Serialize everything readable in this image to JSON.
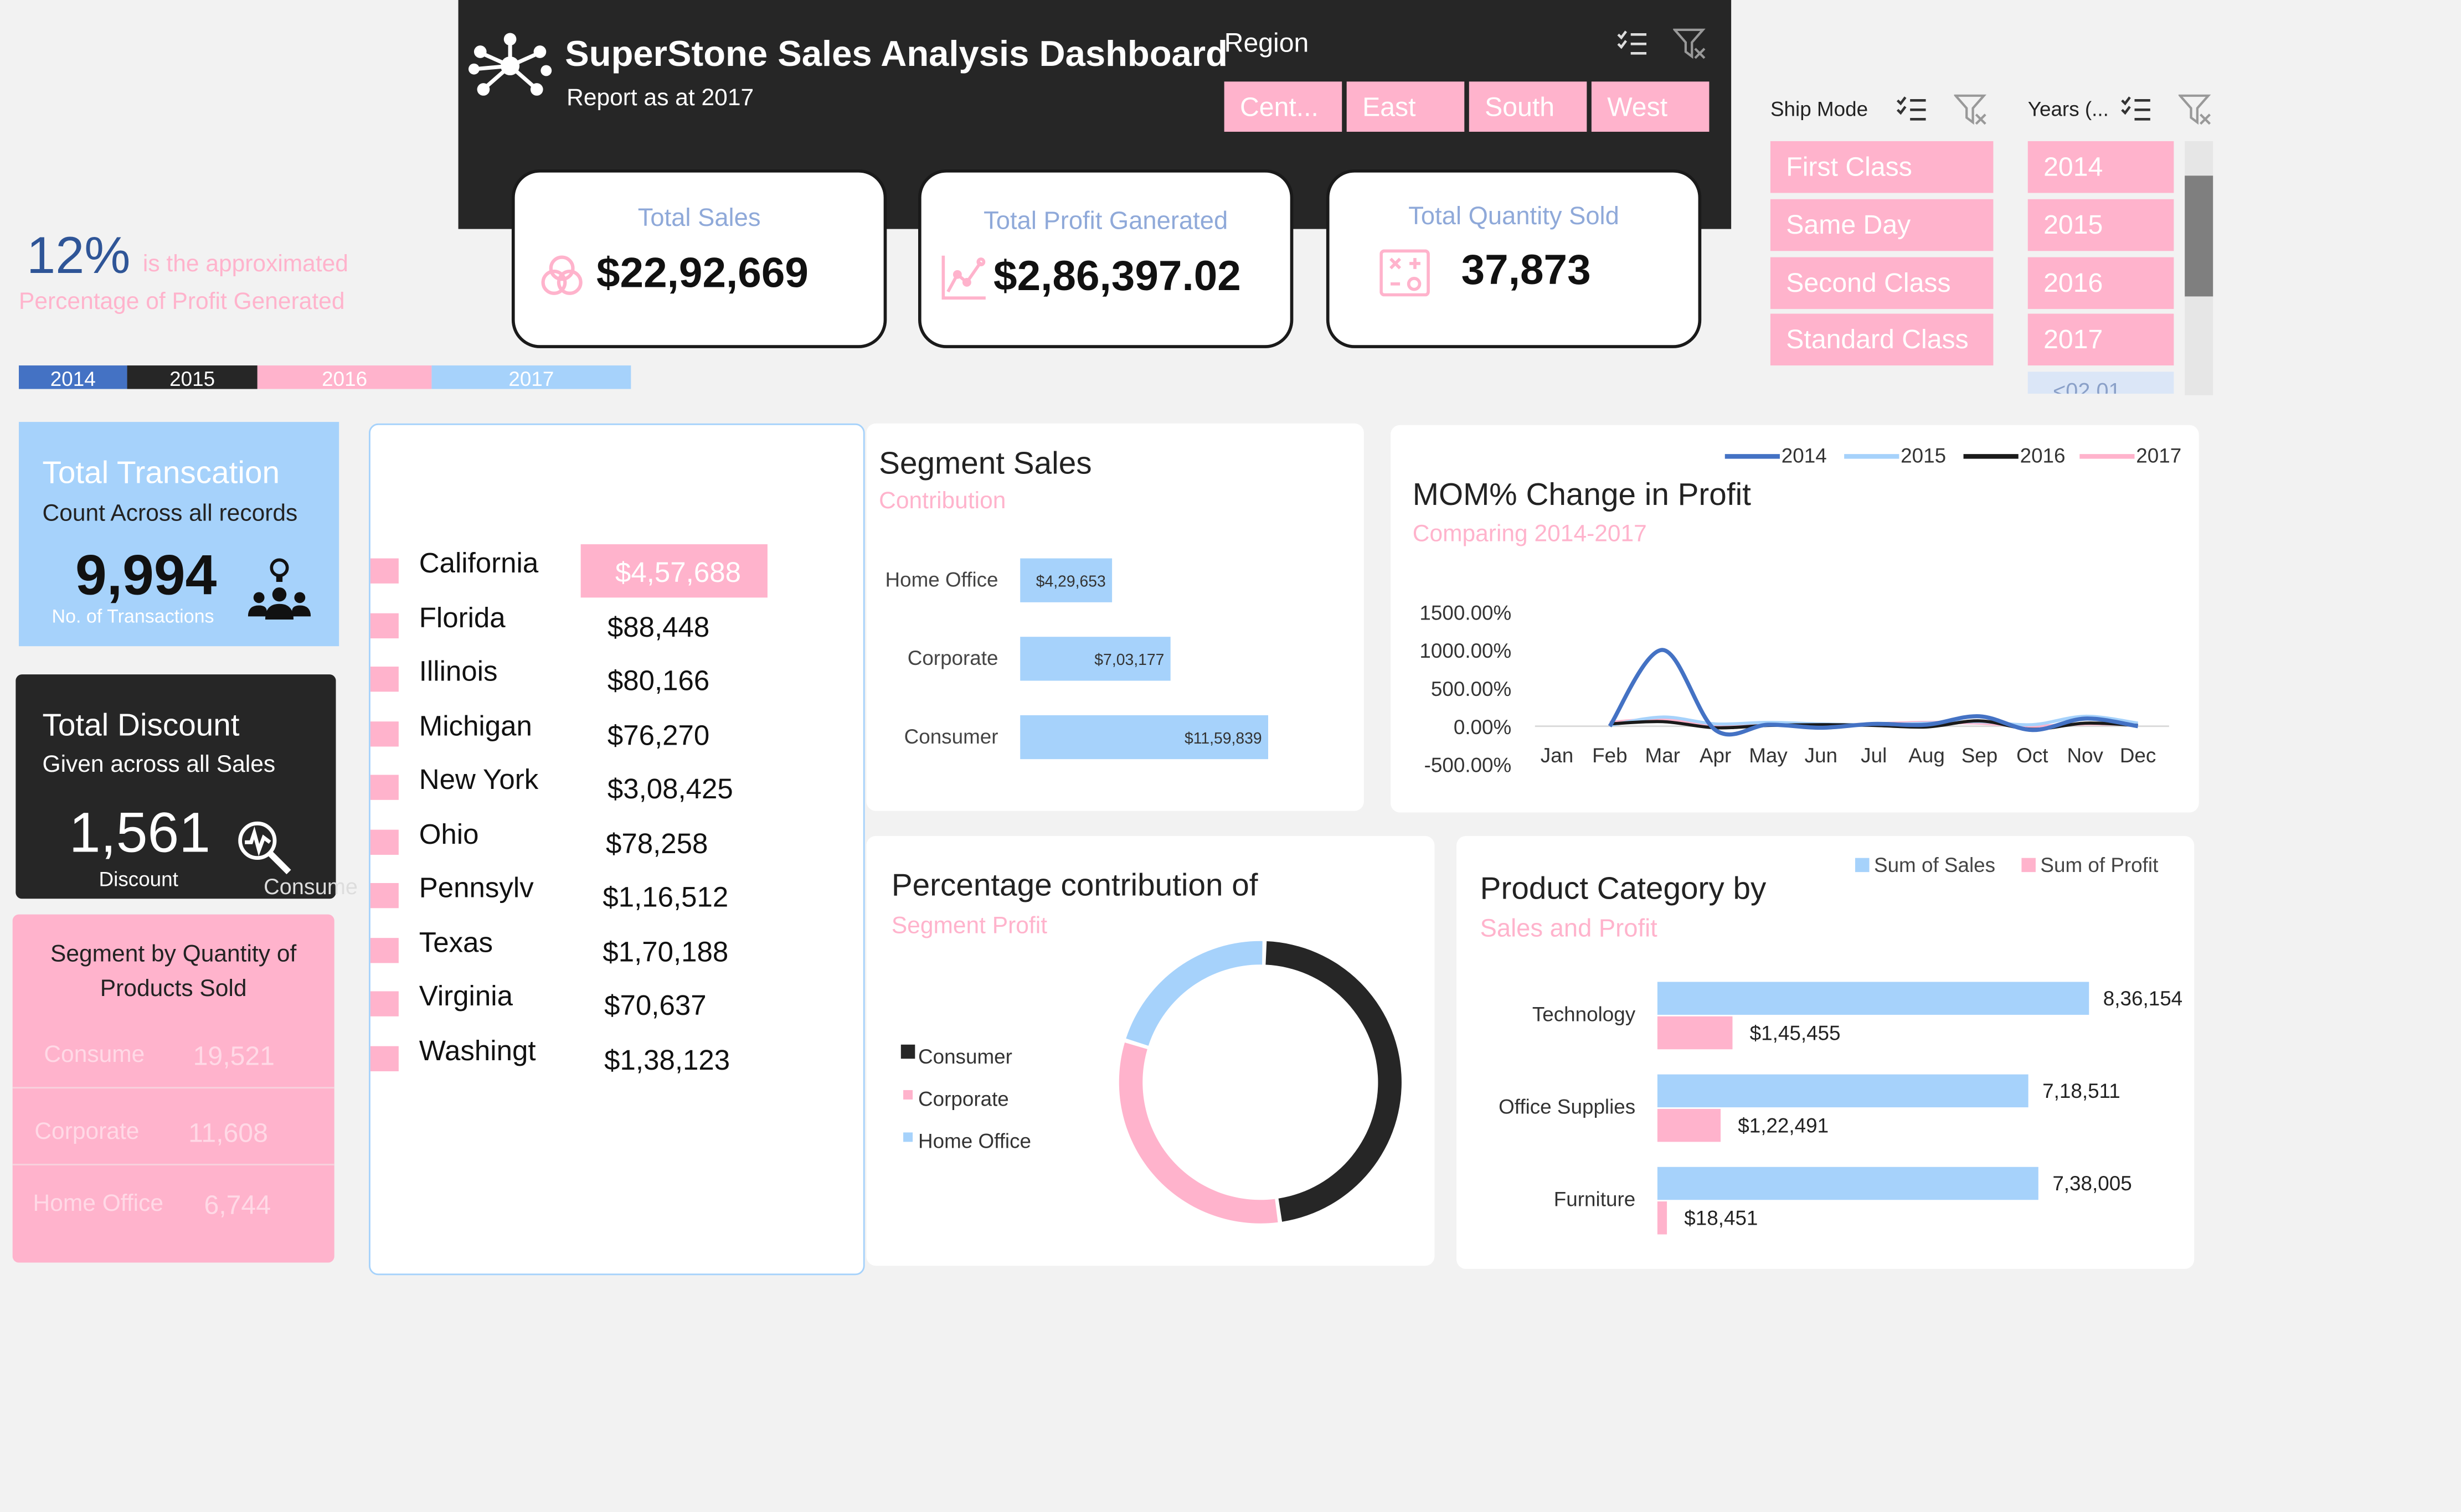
{
  "header": {
    "title": "SuperStone Sales Analysis Dashboard",
    "subtitle": "Report as at 2017",
    "logo_icon": "network-hub-icon"
  },
  "region_slicer": {
    "title": "Region",
    "options": [
      "Cent...",
      "East",
      "South",
      "West"
    ],
    "icons": [
      "multi-select-icon",
      "clear-filter-icon"
    ]
  },
  "ship_mode_slicer": {
    "title": "Ship Mode",
    "options": [
      "First Class",
      "Same Day",
      "Second Class",
      "Standard Class"
    ]
  },
  "years_slicer": {
    "title": "Years (...",
    "options": [
      "2014",
      "2015",
      "2016",
      "2017"
    ],
    "partial_option": "<02 01"
  },
  "kpis": {
    "sales": {
      "title": "Total Sales",
      "value": "$22,92,669",
      "icon": "venn-circles-icon"
    },
    "profit": {
      "title": "Total Profit Ganerated",
      "value": "$2,86,397.02",
      "icon": "line-chart-icon"
    },
    "quantity": {
      "title": "Total Quantity Sold",
      "value": "37,873",
      "icon": "abacus-icon"
    }
  },
  "profit_pct": {
    "value": "12%",
    "text1": "is the approximated",
    "text2": "Percentage of Profit Generated"
  },
  "year_legend": [
    {
      "label": "2014",
      "color": "#4472c4"
    },
    {
      "label": "2015",
      "color": "#262626"
    },
    {
      "label": "2016",
      "color": "#ffb3cc"
    },
    {
      "label": "2017",
      "color": "#a6d2fb"
    }
  ],
  "transactions": {
    "title": "Total Transcation",
    "subtitle": "Count Across all records",
    "value": "9,994",
    "caption": "No. of Transactions",
    "icon": "people-idea-icon"
  },
  "discount": {
    "title": "Total Discount",
    "subtitle": "Given across all Sales",
    "value": "1,561",
    "caption": "Discount",
    "overflow_label": "Consume",
    "icon": "search-analytics-icon"
  },
  "segment_quantity": {
    "title_line1": "Segment by Quantity of",
    "title_line2": "Products Sold",
    "rows": [
      {
        "name": "Consume",
        "value": "19,521"
      },
      {
        "name": "Corporate",
        "value": "11,608"
      },
      {
        "name": "Home Office",
        "value": "6,744"
      }
    ]
  },
  "states": [
    {
      "name": "California",
      "value": "$4,57,688"
    },
    {
      "name": "Florida",
      "value": "$88,448"
    },
    {
      "name": "Illinois",
      "value": "$80,166"
    },
    {
      "name": "Michigan",
      "value": "$76,270"
    },
    {
      "name": "New York",
      "value": "$3,08,425"
    },
    {
      "name": "Ohio",
      "value": "$78,258"
    },
    {
      "name": "Pennsylv",
      "value": "$1,16,512"
    },
    {
      "name": "Texas",
      "value": "$1,70,188"
    },
    {
      "name": "Virginia",
      "value": "$70,637"
    },
    {
      "name": "Washingt",
      "value": "$1,38,123"
    }
  ],
  "chart_data": [
    {
      "id": "segment_sales",
      "type": "bar",
      "title": "Segment Sales",
      "subtitle": "Contribution",
      "orientation": "horizontal",
      "categories": [
        "Home Office",
        "Corporate",
        "Consumer"
      ],
      "values": [
        429653,
        703177,
        1159839
      ],
      "labels": [
        "$4,29,653",
        "$7,03,177",
        "$11,59,839"
      ],
      "color": "#a6d2fb"
    },
    {
      "id": "mom_profit",
      "type": "line",
      "title": "MOM% Change in Profit",
      "subtitle": "Comparing 2014-2017",
      "x": [
        "Jan",
        "Feb",
        "Mar",
        "Apr",
        "May",
        "Jun",
        "Jul",
        "Aug",
        "Sep",
        "Oct",
        "Nov",
        "Dec"
      ],
      "yticks": [
        "1500.00%",
        "1000.00%",
        "500.00%",
        "0.00%",
        "-500.00%"
      ],
      "ylim": [
        -500,
        1500
      ],
      "legend_position": "top-right",
      "series": [
        {
          "name": "2014",
          "color": "#4472c4",
          "values": [
            null,
            0,
            1000,
            -50,
            20,
            -20,
            30,
            20,
            130,
            -50,
            100,
            0
          ]
        },
        {
          "name": "2015",
          "color": "#a6d2fb",
          "values": [
            null,
            10,
            120,
            30,
            50,
            30,
            20,
            40,
            60,
            20,
            130,
            40
          ]
        },
        {
          "name": "2016",
          "color": "#1a1a1a",
          "values": [
            null,
            30,
            60,
            -20,
            10,
            20,
            10,
            -10,
            70,
            -40,
            40,
            10
          ]
        },
        {
          "name": "2017",
          "color": "#ffb3cc",
          "values": [
            null,
            50,
            90,
            10,
            20,
            10,
            30,
            50,
            40,
            0,
            30,
            20
          ]
        }
      ]
    },
    {
      "id": "segment_profit_pct",
      "type": "pie",
      "title": "Percentage contribution of",
      "subtitle": "Segment Profit",
      "donut": true,
      "categories": [
        "Consumer",
        "Corporate",
        "Home Office"
      ],
      "values": [
        47.3,
        32.0,
        20.7
      ],
      "colors": [
        "#262626",
        "#ffb3cc",
        "#a6d2fb"
      ]
    },
    {
      "id": "product_category",
      "type": "bar",
      "title": "Product Category by",
      "subtitle": "Sales and Profit",
      "orientation": "horizontal",
      "categories": [
        "Technology",
        "Office Supplies",
        "Furniture"
      ],
      "series": [
        {
          "name": "Sum of Sales",
          "color": "#a6d2fb",
          "values": [
            836154,
            718511,
            738005
          ],
          "labels": [
            "8,36,154",
            "7,18,511",
            "7,38,005"
          ]
        },
        {
          "name": "Sum of Profit",
          "color": "#ffb3cc",
          "values": [
            145455,
            122491,
            18451
          ],
          "labels": [
            "$1,45,455",
            "$1,22,491",
            "$18,451"
          ]
        }
      ]
    }
  ]
}
